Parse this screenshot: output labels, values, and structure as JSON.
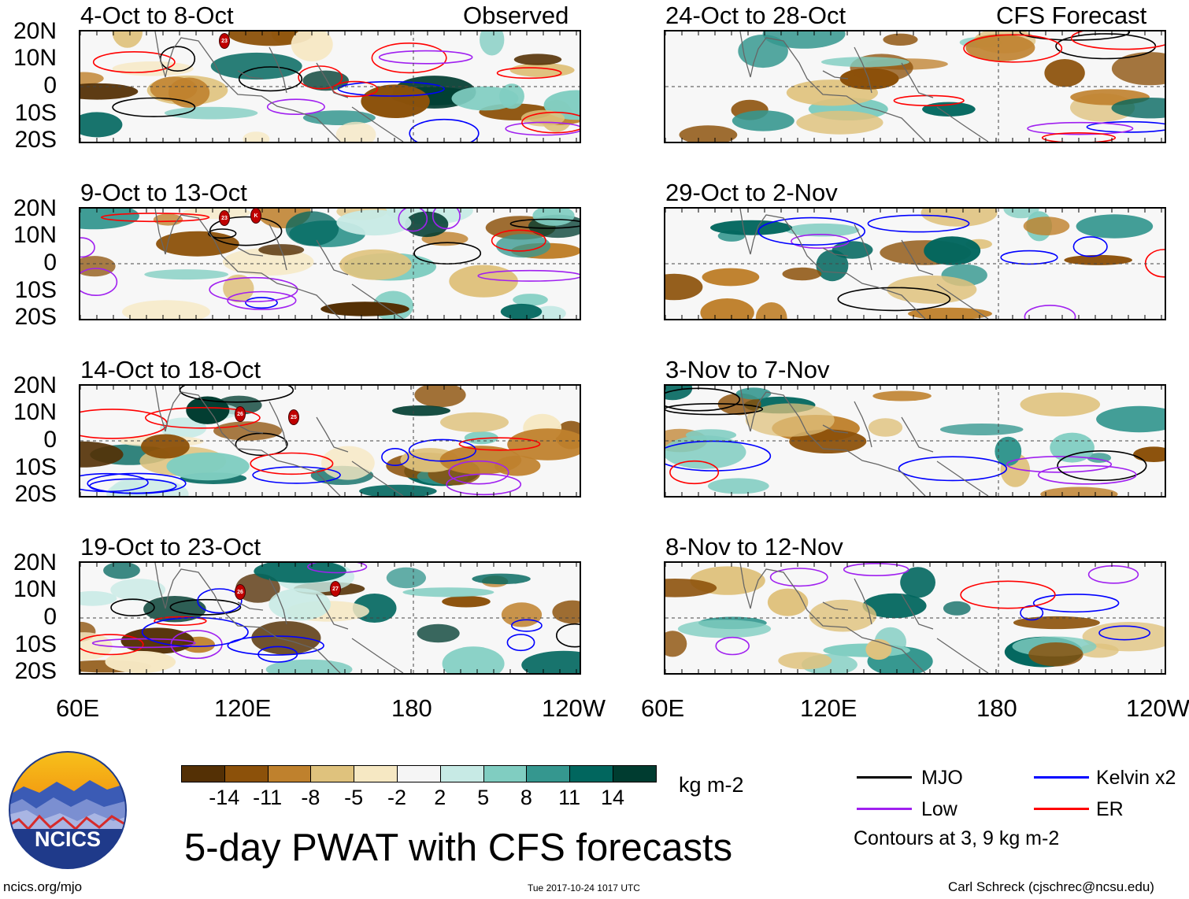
{
  "panels": [
    {
      "title": "4-Oct to 8-Oct",
      "label": "Observed"
    },
    {
      "title": "24-Oct to 28-Oct",
      "label": "CFS Forecast"
    },
    {
      "title": "9-Oct to 13-Oct",
      "label": ""
    },
    {
      "title": "29-Oct to 2-Nov",
      "label": ""
    },
    {
      "title": "14-Oct to 18-Oct",
      "label": ""
    },
    {
      "title": "3-Nov to 7-Nov",
      "label": ""
    },
    {
      "title": "19-Oct to 23-Oct",
      "label": ""
    },
    {
      "title": "8-Nov to 12-Nov",
      "label": ""
    }
  ],
  "y_ticks": [
    "20N",
    "10N",
    "0",
    "10S",
    "20S"
  ],
  "x_ticks": [
    "60E",
    "120E",
    "180",
    "120W"
  ],
  "storm_markers": [
    "23",
    "23",
    "K",
    "26",
    "25",
    "26",
    "27"
  ],
  "colorbar": {
    "labels": [
      "-14",
      "-11",
      "-8",
      "-5",
      "-2",
      "2",
      "5",
      "8",
      "11",
      "14"
    ],
    "colors": [
      "#543005",
      "#8c510a",
      "#bf812d",
      "#dfc27d",
      "#f6e8c3",
      "#f5f5f5",
      "#c7eae5",
      "#80cdc1",
      "#35978f",
      "#01665e",
      "#003c30"
    ],
    "units": "kg m-2"
  },
  "legend": {
    "items": [
      {
        "label": "MJO",
        "color": "#000000"
      },
      {
        "label": "Kelvin x2",
        "color": "#0000ff"
      },
      {
        "label": "Low",
        "color": "#a020f0"
      },
      {
        "label": "ER",
        "color": "#ff0000"
      }
    ],
    "note": "Contours at 3, 9 kg m-2"
  },
  "logo": {
    "text": "NCICS"
  },
  "main_title": "5-day PWAT with CFS forecasts",
  "footer": {
    "url": "ncics.org/mjo",
    "timestamp": "Tue 2017-10-24 1017 UTC",
    "credit": "Carl Schreck (cjschrec@ncsu.edu)"
  }
}
